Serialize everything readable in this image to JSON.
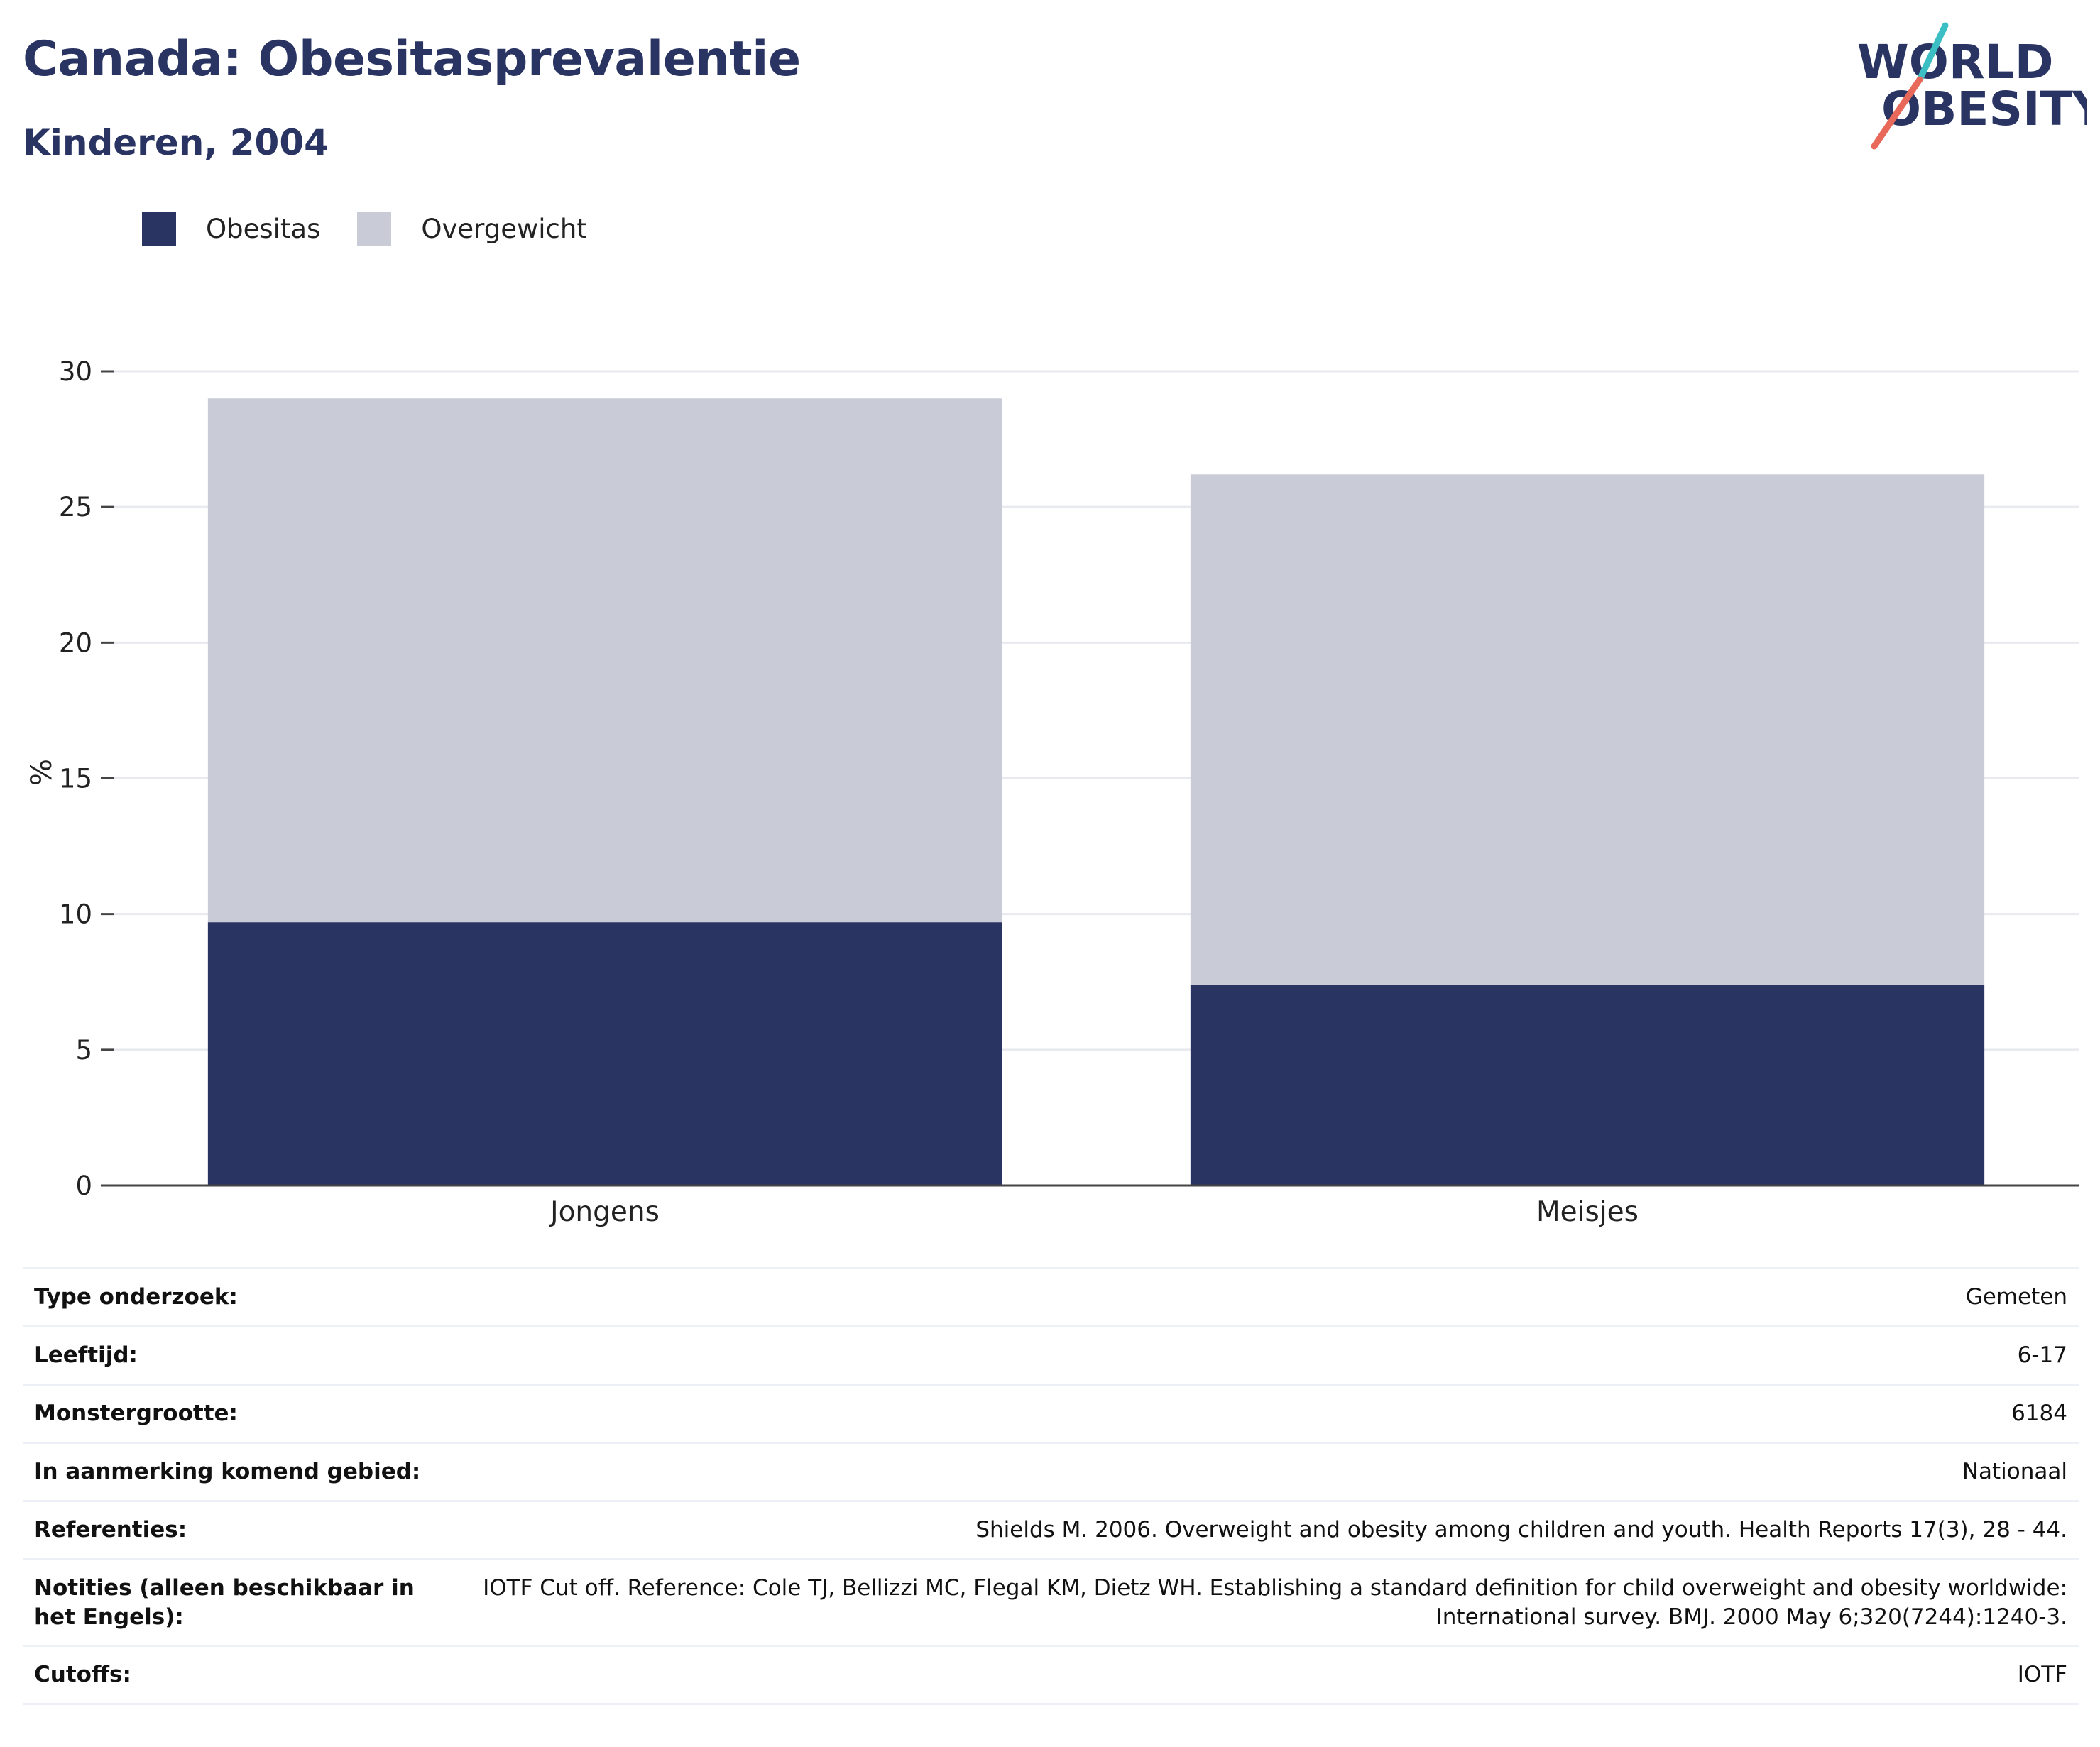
{
  "header": {
    "title": "Canada: Obesitasprevalentie",
    "subtitle": "Kinderen, 2004"
  },
  "logo": {
    "line1": "WORLD",
    "line2": "OBESITY",
    "colors": {
      "text": "#293462",
      "slash_top": "#3bbfc4",
      "slash_bottom": "#e8685a"
    }
  },
  "legend": [
    {
      "label": "Obesitas",
      "color": "#293462"
    },
    {
      "label": "Overgewicht",
      "color": "#c9ccd7"
    }
  ],
  "chart_data": {
    "type": "bar",
    "stacked": true,
    "categories": [
      "Jongens",
      "Meisjes"
    ],
    "series": [
      {
        "name": "Obesitas",
        "values": [
          9.7,
          7.4
        ],
        "color": "#293462"
      },
      {
        "name": "Overgewicht",
        "values": [
          19.3,
          18.8
        ],
        "color": "#c9ccd7"
      }
    ],
    "ylabel": "%",
    "ylim": [
      0,
      30
    ],
    "yticks": [
      0,
      5,
      10,
      15,
      20,
      25,
      30
    ],
    "grid": true,
    "legend_position": "top-left"
  },
  "info": [
    {
      "key": "Type onderzoek:",
      "value": "Gemeten"
    },
    {
      "key": "Leeftijd:",
      "value": "6-17"
    },
    {
      "key": "Monstergrootte:",
      "value": "6184"
    },
    {
      "key": "In aanmerking komend gebied:",
      "value": "Nationaal"
    },
    {
      "key": "Referenties:",
      "value": "Shields M. 2006. Overweight and obesity among children and youth. Health Reports 17(3), 28 - 44."
    },
    {
      "key": "Notities (alleen beschikbaar in het Engels):",
      "value": "IOTF Cut off. Reference: Cole TJ, Bellizzi MC, Flegal KM, Dietz WH. Establishing a standard definition for child overweight and obesity worldwide: International survey. BMJ. 2000 May 6;320(7244):1240-3."
    },
    {
      "key": "Cutoffs:",
      "value": "IOTF"
    }
  ]
}
